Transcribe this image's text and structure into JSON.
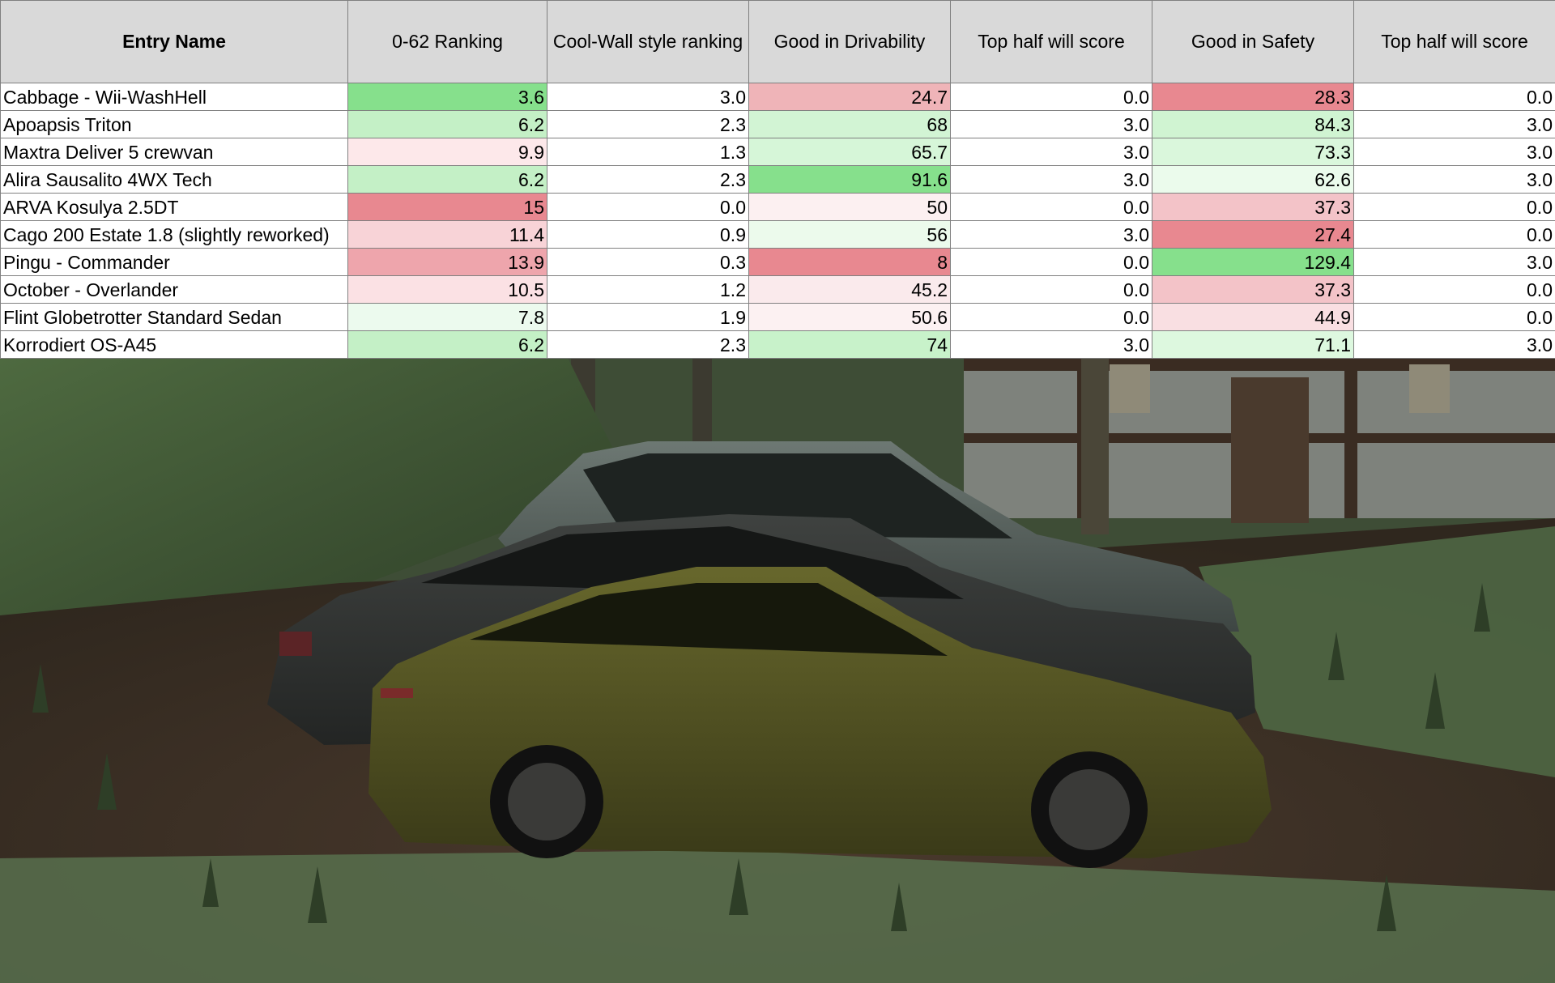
{
  "table": {
    "headers": [
      "Entry Name",
      "0-62 Ranking",
      "Cool-Wall style ranking",
      "Good in Drivability",
      "Top half will score",
      "Good in Safety",
      "Top half will score"
    ],
    "rows": [
      [
        "Cabbage - Wii-WashHell",
        "3.6",
        "3.0",
        "24.7",
        "0.0",
        "28.3",
        "0.0"
      ],
      [
        "Apoapsis Triton",
        "6.2",
        "2.3",
        "68",
        "3.0",
        "84.3",
        "3.0"
      ],
      [
        "Maxtra Deliver 5 crewvan",
        "9.9",
        "1.3",
        "65.7",
        "3.0",
        "73.3",
        "3.0"
      ],
      [
        "Alira Sausalito 4WX Tech",
        "6.2",
        "2.3",
        "91.6",
        "3.0",
        "62.6",
        "3.0"
      ],
      [
        "ARVA Kosulya 2.5DT",
        "15",
        "0.0",
        "50",
        "0.0",
        "37.3",
        "0.0"
      ],
      [
        "Cago 200 Estate 1.8 (slightly reworked)",
        "11.4",
        "0.9",
        "56",
        "3.0",
        "27.4",
        "0.0"
      ],
      [
        "Pingu - Commander",
        "13.9",
        "0.3",
        "8",
        "0.0",
        "129.4",
        "3.0"
      ],
      [
        "October - Overlander",
        "10.5",
        "1.2",
        "45.2",
        "0.0",
        "37.3",
        "0.0"
      ],
      [
        "Flint Globetrotter Standard Sedan",
        "7.8",
        "1.9",
        "50.6",
        "0.0",
        "44.9",
        "0.0"
      ],
      [
        "Korrodiert OS-A45",
        "6.2",
        "2.3",
        "74",
        "3.0",
        "71.1",
        "3.0"
      ]
    ],
    "cell_colors": [
      [
        "#ffffff",
        "#86e08c",
        "#ffffff",
        "#efb4b8",
        "#ffffff",
        "#e88890",
        "#ffffff"
      ],
      [
        "#ffffff",
        "#c4f0c6",
        "#ffffff",
        "#d2f4d4",
        "#ffffff",
        "#d0f4d2",
        "#ffffff"
      ],
      [
        "#ffffff",
        "#fde8ea",
        "#ffffff",
        "#d6f6d8",
        "#ffffff",
        "#daf7dc",
        "#ffffff"
      ],
      [
        "#ffffff",
        "#c4f0c6",
        "#ffffff",
        "#86e08c",
        "#ffffff",
        "#ebfbec",
        "#ffffff"
      ],
      [
        "#ffffff",
        "#e88890",
        "#ffffff",
        "#fcf0f1",
        "#ffffff",
        "#f3c3c8",
        "#ffffff"
      ],
      [
        "#ffffff",
        "#f8d3d7",
        "#ffffff",
        "#ecfaec",
        "#ffffff",
        "#e88890",
        "#ffffff"
      ],
      [
        "#ffffff",
        "#eea5ac",
        "#ffffff",
        "#e88890",
        "#ffffff",
        "#86e08c",
        "#ffffff"
      ],
      [
        "#ffffff",
        "#fbe1e4",
        "#ffffff",
        "#faeaec",
        "#ffffff",
        "#f3c3c8",
        "#ffffff"
      ],
      [
        "#ffffff",
        "#ecfaee",
        "#ffffff",
        "#fcf1f2",
        "#ffffff",
        "#f9dfe2",
        "#ffffff"
      ],
      [
        "#ffffff",
        "#c4f0c6",
        "#ffffff",
        "#c8f2ca",
        "#ffffff",
        "#ddf8df",
        "#ffffff"
      ]
    ]
  },
  "scene": {
    "description_icon": "three-cars-render-icon"
  }
}
